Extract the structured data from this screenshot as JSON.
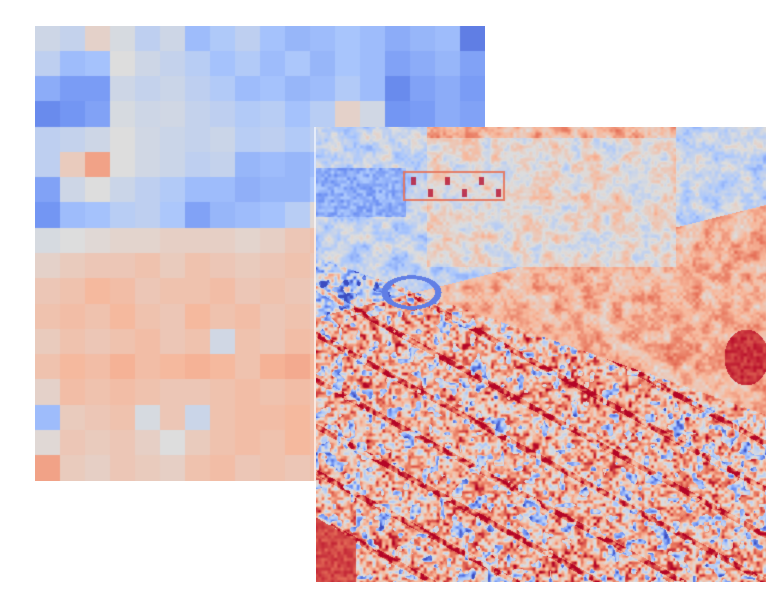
{
  "image": {
    "panels": [
      {
        "name": "coarse-heatmap",
        "description_kind": "low-resolution diverging heatmap"
      },
      {
        "name": "fine-heatmap",
        "description_kind": "high-resolution diverging heatmap over urban aerial scene"
      }
    ],
    "colormap": {
      "name": "coolwarm",
      "stops": [
        "#3b4cc0",
        "#6f92f3",
        "#aac7fd",
        "#dddddd",
        "#f7b89c",
        "#e7745b",
        "#b40426"
      ]
    }
  },
  "coarse_grid": {
    "rows": 18,
    "cols": 18,
    "values": [
      [
        0.45,
        0.42,
        0.55,
        0.48,
        0.4,
        0.45,
        0.3,
        0.35,
        0.4,
        0.32,
        0.28,
        0.3,
        0.33,
        0.3,
        0.25,
        0.28,
        0.3,
        0.12
      ],
      [
        0.4,
        0.3,
        0.32,
        0.5,
        0.45,
        0.42,
        0.38,
        0.32,
        0.36,
        0.3,
        0.34,
        0.28,
        0.33,
        0.3,
        0.22,
        0.25,
        0.28,
        0.22
      ],
      [
        0.25,
        0.2,
        0.2,
        0.45,
        0.42,
        0.44,
        0.4,
        0.36,
        0.3,
        0.32,
        0.28,
        0.3,
        0.36,
        0.3,
        0.15,
        0.22,
        0.25,
        0.2
      ],
      [
        0.15,
        0.18,
        0.22,
        0.48,
        0.45,
        0.46,
        0.42,
        0.4,
        0.36,
        0.38,
        0.32,
        0.38,
        0.55,
        0.46,
        0.18,
        0.2,
        0.25,
        0.22
      ],
      [
        0.4,
        0.42,
        0.45,
        0.5,
        0.46,
        0.44,
        0.42,
        0.44,
        0.38,
        0.4,
        0.36,
        0.4,
        0.45,
        0.42,
        0.35,
        0.3,
        0.32,
        0.3
      ],
      [
        0.4,
        0.58,
        0.72,
        0.5,
        0.46,
        0.44,
        0.4,
        0.42,
        0.28,
        0.3,
        0.28,
        0.3,
        0.46,
        0.45,
        0.42,
        0.4,
        0.38,
        0.35
      ],
      [
        0.22,
        0.45,
        0.5,
        0.44,
        0.4,
        0.36,
        0.3,
        0.3,
        0.26,
        0.28,
        0.28,
        0.34,
        0.4,
        0.42,
        0.4,
        0.38,
        0.36,
        0.32
      ],
      [
        0.18,
        0.3,
        0.32,
        0.38,
        0.4,
        0.34,
        0.22,
        0.28,
        0.3,
        0.32,
        0.38,
        0.52,
        0.5,
        0.45,
        0.42,
        0.4,
        0.38,
        0.35
      ],
      [
        0.48,
        0.5,
        0.52,
        0.54,
        0.54,
        0.56,
        0.56,
        0.56,
        0.54,
        0.56,
        0.6,
        0.62,
        0.6,
        0.56,
        0.5,
        0.45,
        0.42,
        0.4
      ],
      [
        0.55,
        0.58,
        0.6,
        0.6,
        0.62,
        0.58,
        0.62,
        0.6,
        0.58,
        0.6,
        0.62,
        0.6,
        0.58,
        0.56,
        0.52,
        0.5,
        0.48,
        0.45
      ],
      [
        0.6,
        0.62,
        0.66,
        0.64,
        0.6,
        0.62,
        0.62,
        0.64,
        0.6,
        0.62,
        0.6,
        0.58,
        0.6,
        0.58,
        0.55,
        0.52,
        0.52,
        0.5
      ],
      [
        0.62,
        0.64,
        0.62,
        0.66,
        0.62,
        0.6,
        0.66,
        0.62,
        0.64,
        0.6,
        0.62,
        0.6,
        0.62,
        0.6,
        0.55,
        0.56,
        0.52,
        0.55
      ],
      [
        0.58,
        0.62,
        0.6,
        0.62,
        0.64,
        0.6,
        0.62,
        0.46,
        0.62,
        0.6,
        0.64,
        0.62,
        0.6,
        0.56,
        0.58,
        0.52,
        0.55,
        0.5
      ],
      [
        0.62,
        0.66,
        0.64,
        0.68,
        0.64,
        0.66,
        0.68,
        0.66,
        0.62,
        0.68,
        0.7,
        0.66,
        0.64,
        0.6,
        0.58,
        0.56,
        0.55,
        0.52
      ],
      [
        0.55,
        0.64,
        0.62,
        0.64,
        0.62,
        0.6,
        0.6,
        0.62,
        0.64,
        0.62,
        0.64,
        0.62,
        0.58,
        0.62,
        0.6,
        0.58,
        0.55,
        0.55
      ],
      [
        0.3,
        0.58,
        0.6,
        0.62,
        0.48,
        0.6,
        0.44,
        0.62,
        0.64,
        0.64,
        0.66,
        0.62,
        0.64,
        0.6,
        0.58,
        0.55,
        0.55,
        0.52
      ],
      [
        0.52,
        0.6,
        0.58,
        0.6,
        0.56,
        0.5,
        0.58,
        0.62,
        0.64,
        0.62,
        0.66,
        0.64,
        0.62,
        0.58,
        0.55,
        0.55,
        0.52,
        0.5
      ],
      [
        0.72,
        0.58,
        0.56,
        0.6,
        0.58,
        0.56,
        0.62,
        0.64,
        0.6,
        0.62,
        0.6,
        0.62,
        0.6,
        0.58,
        0.55,
        0.52,
        0.52,
        0.5
      ]
    ]
  }
}
